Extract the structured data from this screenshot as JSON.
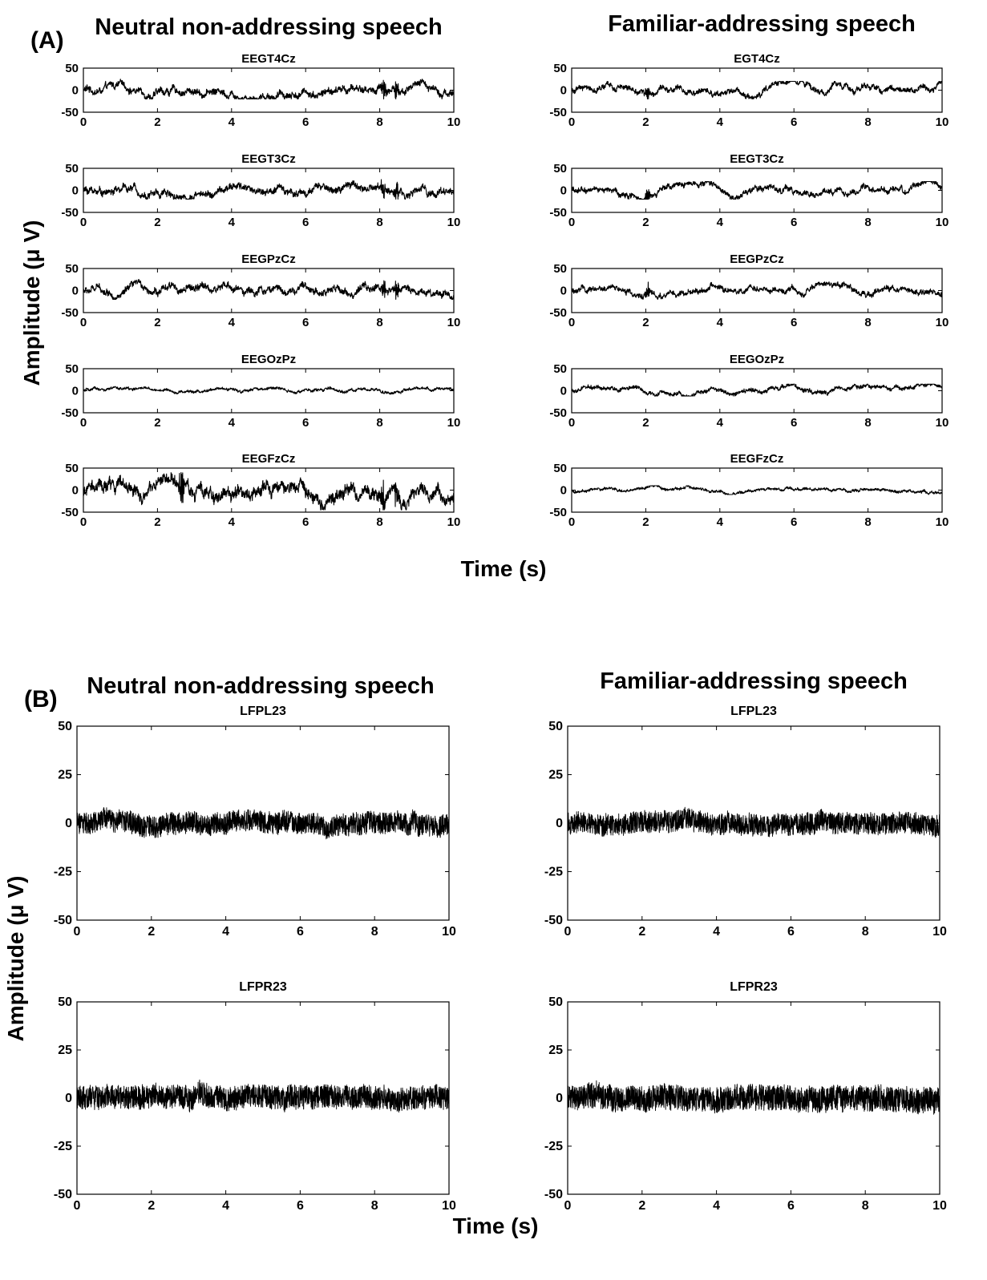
{
  "panel_a": {
    "label": "(A)",
    "left_title": "Neutral non-addressing speech",
    "right_title": "Familiar-addressing speech",
    "ylabel": "Amplitude (μ V)",
    "xlabel": "Time (s)"
  },
  "panel_b": {
    "label": "(B)",
    "left_title": "Neutral non-addressing speech",
    "right_title": "Familiar-addressing speech",
    "ylabel": "Amplitude (μ V)",
    "xlabel": "Time (s)"
  },
  "chart_data": [
    {
      "type": "line",
      "panel": "A",
      "condition": "Neutral non-addressing speech",
      "title": "EEGT4Cz",
      "xlim": [
        0,
        10
      ],
      "ylim": [
        -50,
        50
      ],
      "xticks": [
        0,
        2,
        4,
        6,
        8,
        10
      ],
      "yticks": [
        -50,
        0,
        50
      ],
      "signal": {
        "baseline": 0,
        "amplitude_range": [
          -20,
          25
        ],
        "artifacts_at_s": [
          8.1,
          8.45
        ]
      }
    },
    {
      "type": "line",
      "panel": "A",
      "condition": "Neutral non-addressing speech",
      "title": "EEGT3Cz",
      "xlim": [
        0,
        10
      ],
      "ylim": [
        -50,
        50
      ],
      "xticks": [
        0,
        2,
        4,
        6,
        8,
        10
      ],
      "yticks": [
        -50,
        0,
        50
      ],
      "signal": {
        "baseline": 0,
        "amplitude_range": [
          -20,
          25
        ],
        "artifacts_at_s": [
          8.1,
          8.45
        ]
      }
    },
    {
      "type": "line",
      "panel": "A",
      "condition": "Neutral non-addressing speech",
      "title": "EEGPzCz",
      "xlim": [
        0,
        10
      ],
      "ylim": [
        -50,
        50
      ],
      "xticks": [
        0,
        2,
        4,
        6,
        8,
        10
      ],
      "yticks": [
        -50,
        0,
        50
      ],
      "signal": {
        "baseline": 0,
        "amplitude_range": [
          -20,
          25
        ],
        "artifacts_at_s": [
          8.1,
          8.45
        ]
      }
    },
    {
      "type": "line",
      "panel": "A",
      "condition": "Neutral non-addressing speech",
      "title": "EEGOzPz",
      "xlim": [
        0,
        10
      ],
      "ylim": [
        -50,
        50
      ],
      "xticks": [
        0,
        2,
        4,
        6,
        8,
        10
      ],
      "yticks": [
        -50,
        0,
        50
      ],
      "signal": {
        "baseline": 0,
        "amplitude_range": [
          -10,
          10
        ],
        "artifacts_at_s": []
      }
    },
    {
      "type": "line",
      "panel": "A",
      "condition": "Neutral non-addressing speech",
      "title": "EEGFzCz",
      "xlim": [
        0,
        10
      ],
      "ylim": [
        -50,
        50
      ],
      "xticks": [
        0,
        2,
        4,
        6,
        8,
        10
      ],
      "yticks": [
        -50,
        0,
        50
      ],
      "signal": {
        "baseline": 0,
        "amplitude_range": [
          -45,
          40
        ],
        "artifacts_at_s": [
          2.65,
          8.1,
          8.45
        ]
      }
    },
    {
      "type": "line",
      "panel": "A",
      "condition": "Familiar-addressing speech",
      "title": "EGT4Cz",
      "xlim": [
        0,
        10
      ],
      "ylim": [
        -50,
        50
      ],
      "xticks": [
        0,
        2,
        4,
        6,
        8,
        10
      ],
      "yticks": [
        -50,
        0,
        50
      ],
      "signal": {
        "baseline": 0,
        "amplitude_range": [
          -20,
          20
        ],
        "artifacts_at_s": [
          2.05
        ]
      }
    },
    {
      "type": "line",
      "panel": "A",
      "condition": "Familiar-addressing speech",
      "title": "EEGT3Cz",
      "xlim": [
        0,
        10
      ],
      "ylim": [
        -50,
        50
      ],
      "xticks": [
        0,
        2,
        4,
        6,
        8,
        10
      ],
      "yticks": [
        -50,
        0,
        50
      ],
      "signal": {
        "baseline": 0,
        "amplitude_range": [
          -20,
          20
        ],
        "artifacts_at_s": [
          2.05
        ]
      }
    },
    {
      "type": "line",
      "panel": "A",
      "condition": "Familiar-addressing speech",
      "title": "EEGPzCz",
      "xlim": [
        0,
        10
      ],
      "ylim": [
        -50,
        50
      ],
      "xticks": [
        0,
        2,
        4,
        6,
        8,
        10
      ],
      "yticks": [
        -50,
        0,
        50
      ],
      "signal": {
        "baseline": 0,
        "amplitude_range": [
          -20,
          20
        ],
        "artifacts_at_s": [
          2.05
        ]
      }
    },
    {
      "type": "line",
      "panel": "A",
      "condition": "Familiar-addressing speech",
      "title": "EEGOzPz",
      "xlim": [
        0,
        10
      ],
      "ylim": [
        -50,
        50
      ],
      "xticks": [
        0,
        2,
        4,
        6,
        8,
        10
      ],
      "yticks": [
        -50,
        0,
        50
      ],
      "signal": {
        "baseline": 0,
        "amplitude_range": [
          -12,
          15
        ],
        "artifacts_at_s": []
      }
    },
    {
      "type": "line",
      "panel": "A",
      "condition": "Familiar-addressing speech",
      "title": "EEGFzCz",
      "xlim": [
        0,
        10
      ],
      "ylim": [
        -50,
        50
      ],
      "xticks": [
        0,
        2,
        4,
        6,
        8,
        10
      ],
      "yticks": [
        -50,
        0,
        50
      ],
      "signal": {
        "baseline": 0,
        "amplitude_range": [
          -10,
          10
        ],
        "artifacts_at_s": []
      }
    },
    {
      "type": "line",
      "panel": "B",
      "condition": "Neutral non-addressing speech",
      "title": "LFPL23",
      "xlim": [
        0,
        10
      ],
      "ylim": [
        -50,
        50
      ],
      "xticks": [
        0,
        2,
        4,
        6,
        8,
        10
      ],
      "yticks": [
        -50,
        -25,
        0,
        25,
        50
      ],
      "signal": {
        "baseline": 0,
        "amplitude_range": [
          -10,
          10
        ],
        "artifacts_at_s": []
      }
    },
    {
      "type": "line",
      "panel": "B",
      "condition": "Neutral non-addressing speech",
      "title": "LFPR23",
      "xlim": [
        0,
        10
      ],
      "ylim": [
        -50,
        50
      ],
      "xticks": [
        0,
        2,
        4,
        6,
        8,
        10
      ],
      "yticks": [
        -50,
        -25,
        0,
        25,
        50
      ],
      "signal": {
        "baseline": 0,
        "amplitude_range": [
          -11,
          11
        ],
        "artifacts_at_s": []
      }
    },
    {
      "type": "line",
      "panel": "B",
      "condition": "Familiar-addressing speech",
      "title": "LFPL23",
      "xlim": [
        0,
        10
      ],
      "ylim": [
        -50,
        50
      ],
      "xticks": [
        0,
        2,
        4,
        6,
        8,
        10
      ],
      "yticks": [
        -50,
        -25,
        0,
        25,
        50
      ],
      "signal": {
        "baseline": 0,
        "amplitude_range": [
          -10,
          10
        ],
        "artifacts_at_s": []
      }
    },
    {
      "type": "line",
      "panel": "B",
      "condition": "Familiar-addressing speech",
      "title": "LFPR23",
      "xlim": [
        0,
        10
      ],
      "ylim": [
        -50,
        50
      ],
      "xticks": [
        0,
        2,
        4,
        6,
        8,
        10
      ],
      "yticks": [
        -50,
        -25,
        0,
        25,
        50
      ],
      "signal": {
        "baseline": 0,
        "amplitude_range": [
          -12,
          10
        ],
        "artifacts_at_s": []
      }
    }
  ]
}
